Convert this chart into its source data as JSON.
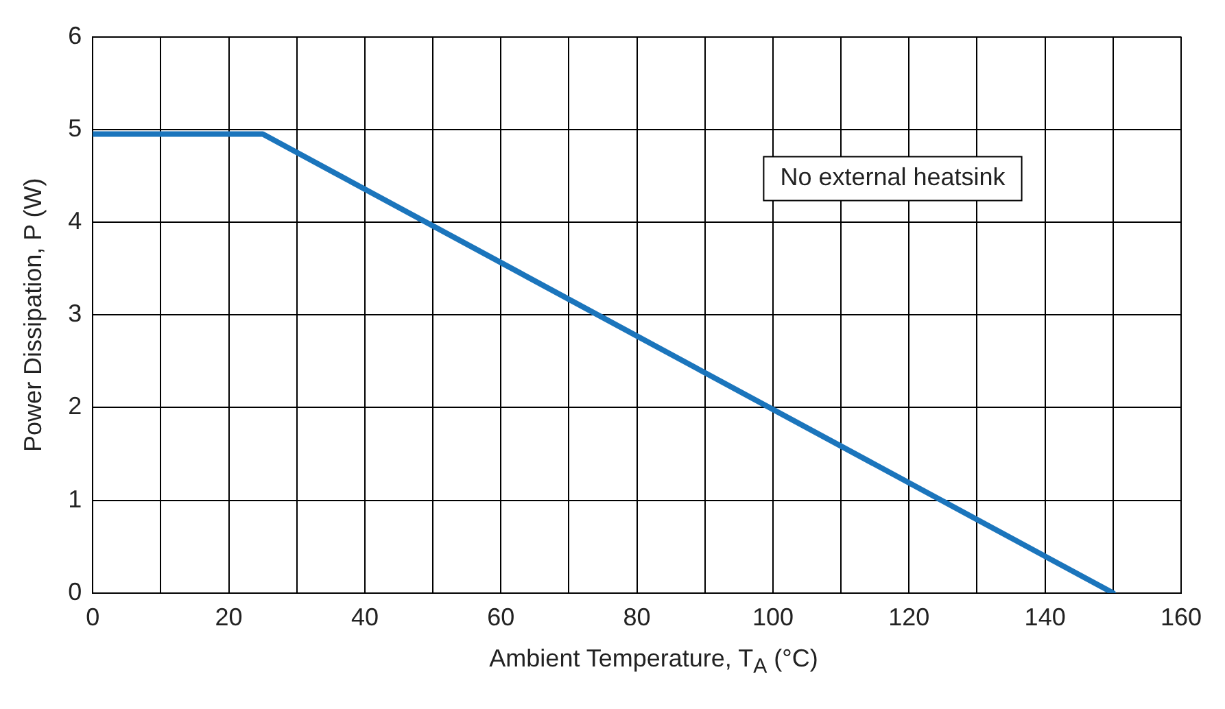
{
  "chart_data": {
    "type": "line",
    "xlabel": "Ambient Temperature, T$_{A}$ (°C)",
    "ylabel": "Power Dissipation, P (W)",
    "annotations": [
      "No external heatsink"
    ],
    "x": [
      0,
      25,
      150
    ],
    "series": [
      {
        "color": "#1b75bc",
        "values": [
          4.95,
          4.95,
          0
        ]
      }
    ],
    "xlim": [
      0,
      160
    ],
    "xticks": [
      0,
      {
        "value": 10,
        "label": null
      },
      20,
      {
        "value": 30,
        "label": null
      },
      40,
      {
        "value": 50,
        "label": null
      },
      60,
      {
        "value": 70,
        "label": null
      },
      80,
      {
        "value": 90,
        "label": null
      },
      100,
      {
        "value": 110,
        "label": null
      },
      120,
      {
        "value": 130,
        "label": null
      },
      140,
      {
        "value": 150,
        "label": null
      },
      160
    ],
    "ylim": [
      0,
      6
    ],
    "yticks": [
      0,
      1,
      2,
      3,
      4,
      5,
      6
    ],
    "grid": true,
    "legend": false,
    "marker": "none",
    "line_style": "solid"
  }
}
